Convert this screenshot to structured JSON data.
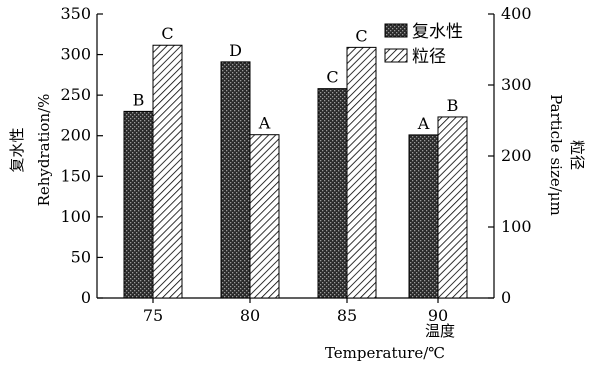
{
  "chart_data": {
    "type": "bar",
    "categories": [
      "75",
      "80",
      "85",
      "90"
    ],
    "xlabel_cn": "温度",
    "xlabel_en": "Temperature/℃",
    "left_axis": {
      "label_cn": "复水性",
      "label_en": "Rehydration/%",
      "ylim": [
        0,
        350
      ],
      "ticks": [
        "0",
        "50",
        "100",
        "150",
        "200",
        "250",
        "300",
        "350"
      ]
    },
    "right_axis": {
      "label_en": "Particle size/μm",
      "label_cn": "粒径",
      "ylim": [
        0,
        400
      ],
      "ticks": [
        "0",
        "100",
        "200",
        "300",
        "400"
      ]
    },
    "series": [
      {
        "name": "复水性",
        "axis": "left",
        "pattern": "crosshatch-dark",
        "values": [
          230,
          291,
          258,
          201
        ],
        "letters": [
          "B",
          "D",
          "C",
          "A"
        ]
      },
      {
        "name": "粒径",
        "axis": "right",
        "pattern": "diagonal-hatch",
        "values": [
          356,
          230,
          353,
          255
        ],
        "letters": [
          "C",
          "A",
          "C",
          "B"
        ]
      }
    ],
    "legend_position": "top-right",
    "grid": false
  }
}
